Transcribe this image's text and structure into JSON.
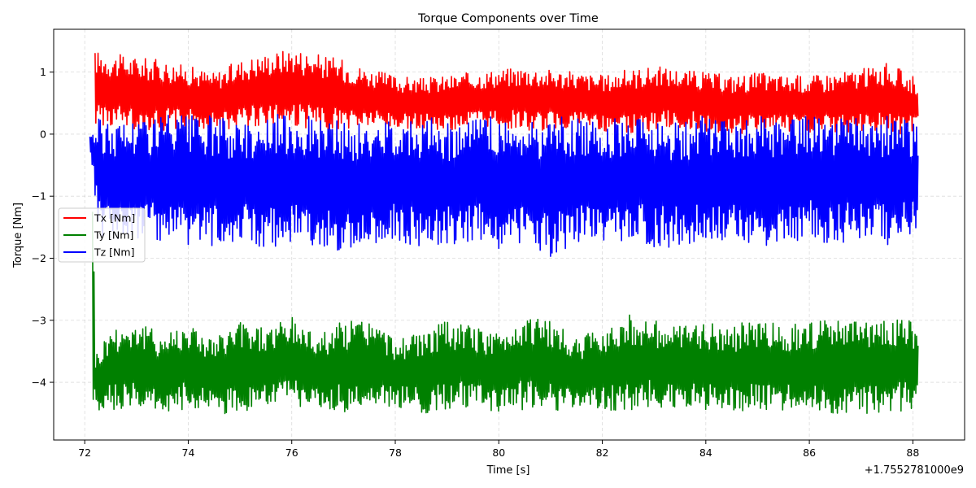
{
  "chart_data": {
    "type": "line",
    "title": "Torque Components over Time",
    "xlabel": "Time [s]",
    "ylabel": "Torque [Nm]",
    "x_offset_label": "+1.7552781000e9",
    "xlim": [
      71.4,
      89.0
    ],
    "ylim": [
      -4.93,
      1.69
    ],
    "xticks": [
      72,
      74,
      76,
      78,
      80,
      82,
      84,
      86,
      88
    ],
    "yticks": [
      -4,
      -3,
      -2,
      -1,
      0,
      1
    ],
    "grid": true,
    "legend_position": "center-left",
    "series": [
      {
        "name": "Tx [Nm]",
        "color": "#ff0000",
        "x": [
          72.2,
          72.5,
          73.0,
          73.5,
          74.0,
          74.5,
          75.0,
          75.5,
          76.0,
          76.5,
          77.0,
          77.5,
          78.0,
          78.5,
          79.0,
          79.5,
          80.0,
          80.5,
          81.0,
          81.5,
          82.0,
          82.5,
          83.0,
          83.5,
          84.0,
          84.5,
          85.0,
          85.5,
          86.0,
          86.5,
          87.0,
          87.5,
          88.0,
          88.1
        ],
        "max": [
          1.35,
          1.3,
          1.25,
          1.2,
          1.1,
          1.0,
          1.2,
          1.3,
          1.4,
          1.3,
          1.2,
          1.05,
          0.95,
          0.9,
          0.95,
          1.0,
          1.05,
          1.1,
          1.05,
          1.0,
          0.95,
          1.05,
          1.1,
          1.05,
          1.0,
          0.95,
          1.0,
          0.95,
          0.95,
          1.0,
          1.05,
          1.15,
          0.95,
          0.9
        ],
        "min": [
          0.15,
          0.1,
          0.05,
          0.05,
          0.1,
          0.05,
          0.1,
          0.15,
          0.1,
          0.05,
          0.05,
          0.1,
          0.05,
          0.1,
          0.05,
          0.1,
          0.1,
          0.05,
          0.05,
          0.1,
          0.05,
          0.0,
          0.05,
          0.1,
          0.05,
          0.0,
          0.0,
          0.05,
          0.0,
          0.0,
          0.05,
          0.0,
          0.0,
          0.05
        ]
      },
      {
        "name": "Ty [Nm]",
        "color": "#008000",
        "x": [
          72.15,
          72.2,
          72.3,
          72.5,
          73.0,
          73.5,
          74.0,
          74.5,
          75.0,
          75.5,
          76.0,
          76.5,
          77.0,
          77.5,
          78.0,
          78.5,
          79.0,
          79.5,
          80.0,
          80.5,
          81.0,
          81.5,
          82.0,
          82.5,
          83.0,
          83.5,
          84.0,
          84.5,
          85.0,
          85.5,
          86.0,
          86.5,
          87.0,
          87.5,
          88.0,
          88.1
        ],
        "max": [
          0.0,
          -3.5,
          -3.4,
          -3.1,
          -3.0,
          -3.2,
          -3.0,
          -3.3,
          -3.0,
          -3.1,
          -2.95,
          -3.2,
          -3.0,
          -2.95,
          -3.3,
          -3.2,
          -3.0,
          -3.1,
          -3.2,
          -2.9,
          -3.0,
          -3.3,
          -3.1,
          -2.9,
          -3.0,
          -3.1,
          -3.0,
          -3.1,
          -2.95,
          -3.1,
          -3.0,
          -3.0,
          -3.0,
          -2.95,
          -3.0,
          -3.1
        ],
        "min": [
          -4.4,
          -4.62,
          -4.55,
          -4.45,
          -4.45,
          -4.5,
          -4.45,
          -4.5,
          -4.52,
          -4.45,
          -4.4,
          -4.45,
          -4.5,
          -4.45,
          -4.4,
          -4.5,
          -4.45,
          -4.4,
          -4.5,
          -4.45,
          -4.45,
          -4.45,
          -4.5,
          -4.45,
          -4.4,
          -4.45,
          -4.45,
          -4.45,
          -4.5,
          -4.45,
          -4.45,
          -4.5,
          -4.5,
          -4.5,
          -4.45,
          -4.25
        ]
      },
      {
        "name": "Tz [Nm]",
        "color": "#0000ff",
        "x": [
          72.1,
          72.3,
          72.5,
          73.0,
          73.5,
          74.0,
          74.5,
          75.0,
          75.5,
          76.0,
          76.5,
          77.0,
          77.5,
          78.0,
          78.5,
          79.0,
          79.5,
          80.0,
          80.5,
          81.0,
          81.5,
          82.0,
          82.5,
          83.0,
          83.5,
          84.0,
          84.5,
          85.0,
          85.5,
          86.0,
          86.5,
          87.0,
          87.5,
          88.0,
          88.1
        ],
        "max": [
          0.0,
          0.3,
          0.2,
          0.3,
          0.35,
          0.3,
          0.3,
          0.2,
          0.3,
          0.35,
          0.3,
          0.2,
          0.15,
          0.3,
          0.3,
          0.2,
          0.3,
          0.3,
          0.2,
          0.3,
          0.25,
          0.25,
          0.3,
          0.3,
          0.2,
          0.3,
          0.25,
          0.3,
          0.2,
          0.3,
          0.3,
          0.25,
          0.3,
          0.2,
          0.15
        ],
        "min": [
          -0.2,
          -1.8,
          -1.6,
          -1.7,
          -1.8,
          -1.9,
          -1.8,
          -1.7,
          -1.85,
          -1.8,
          -1.8,
          -1.9,
          -1.8,
          -1.7,
          -1.85,
          -1.8,
          -1.75,
          -1.9,
          -1.8,
          -2.0,
          -1.8,
          -1.8,
          -1.7,
          -1.85,
          -1.8,
          -1.8,
          -1.7,
          -1.85,
          -1.8,
          -1.7,
          -1.8,
          -1.7,
          -1.8,
          -1.6,
          -1.5
        ]
      }
    ]
  }
}
